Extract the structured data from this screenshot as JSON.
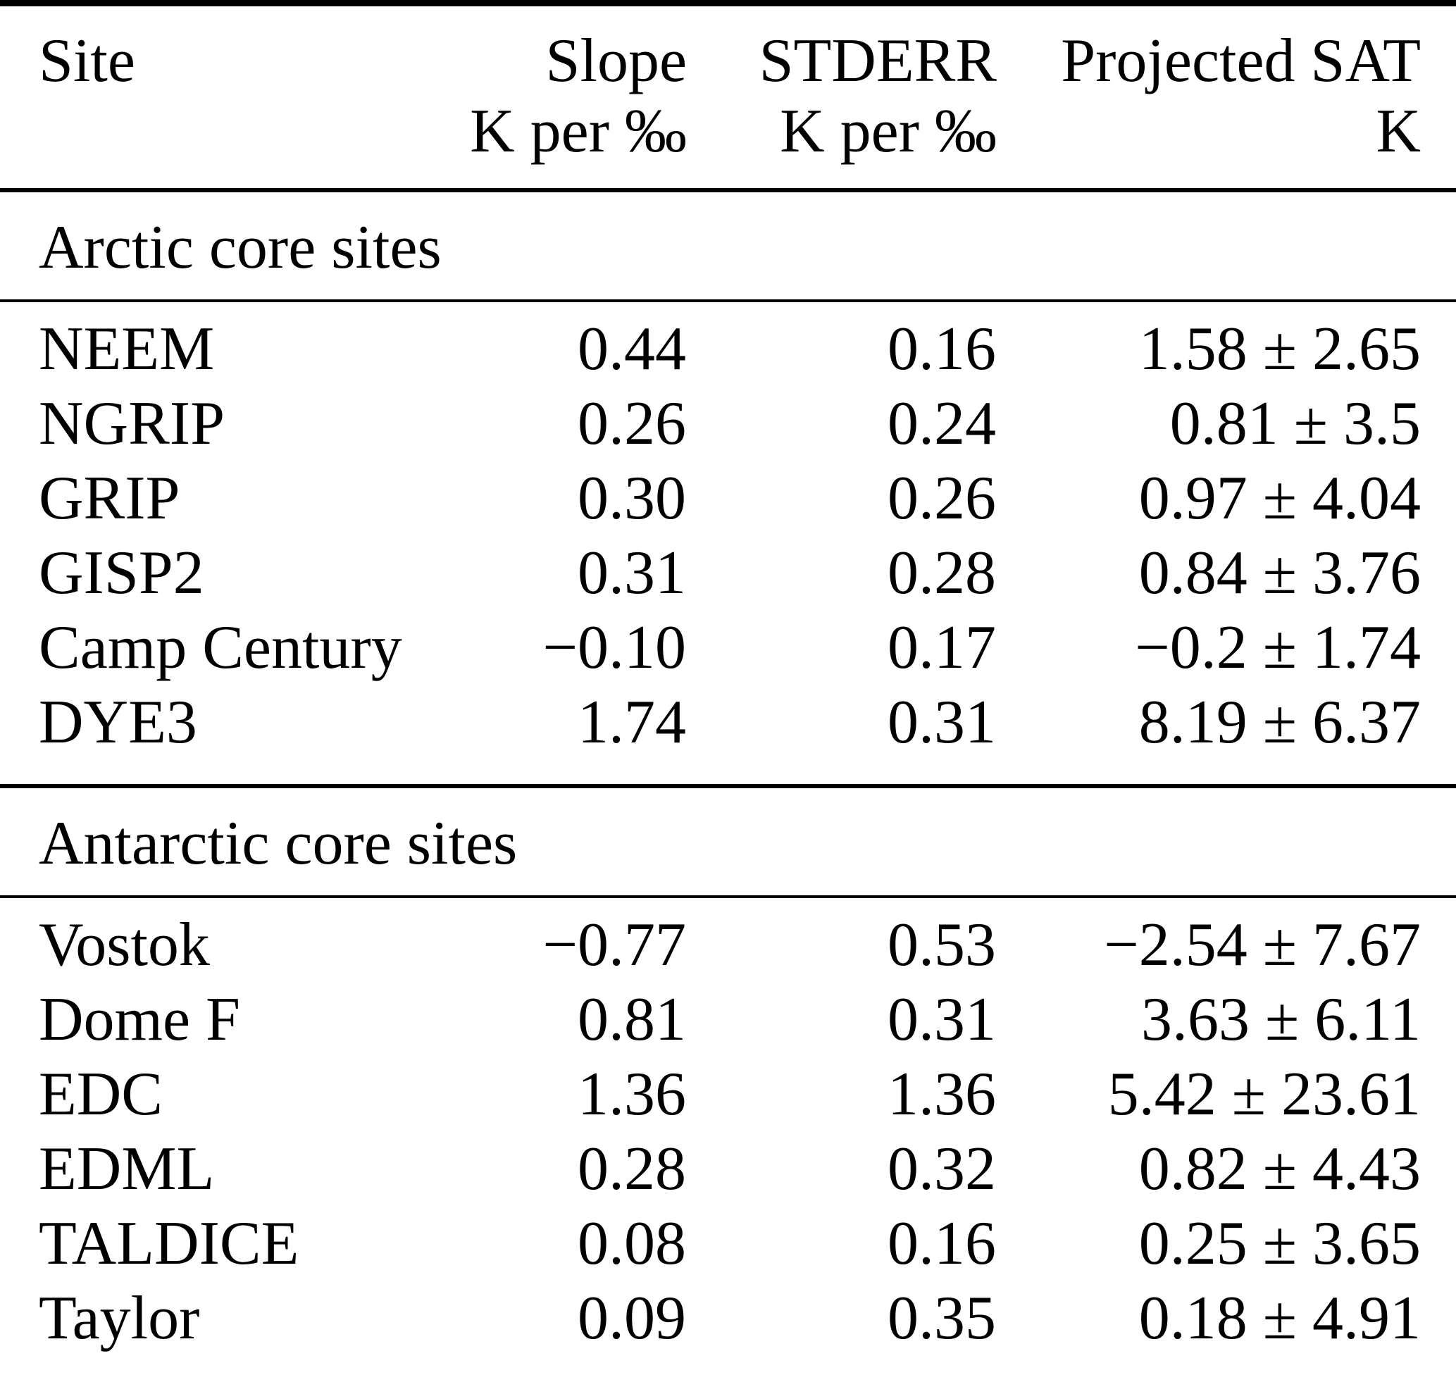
{
  "table": {
    "columns": [
      {
        "label": "Site",
        "unit": ""
      },
      {
        "label": "Slope",
        "unit": "K per ‰"
      },
      {
        "label": "STDERR",
        "unit": "K per ‰"
      },
      {
        "label": "Projected SAT",
        "unit": "K"
      }
    ],
    "sections": [
      {
        "title": "Arctic core sites",
        "rows": [
          {
            "site": "NEEM",
            "slope": "0.44",
            "stderr": "0.16",
            "projected_sat": "1.58 ± 2.65"
          },
          {
            "site": "NGRIP",
            "slope": "0.26",
            "stderr": "0.24",
            "projected_sat": "0.81 ± 3.5"
          },
          {
            "site": "GRIP",
            "slope": "0.30",
            "stderr": "0.26",
            "projected_sat": "0.97 ± 4.04"
          },
          {
            "site": "GISP2",
            "slope": "0.31",
            "stderr": "0.28",
            "projected_sat": "0.84 ± 3.76"
          },
          {
            "site": "Camp Century",
            "slope": "−0.10",
            "stderr": "0.17",
            "projected_sat": "−0.2 ± 1.74"
          },
          {
            "site": "DYE3",
            "slope": "1.74",
            "stderr": "0.31",
            "projected_sat": "8.19 ± 6.37"
          }
        ]
      },
      {
        "title": "Antarctic core sites",
        "rows": [
          {
            "site": "Vostok",
            "slope": "−0.77",
            "stderr": "0.53",
            "projected_sat": "−2.54 ± 7.67"
          },
          {
            "site": "Dome F",
            "slope": "0.81",
            "stderr": "0.31",
            "projected_sat": "3.63 ± 6.11"
          },
          {
            "site": "EDC",
            "slope": "1.36",
            "stderr": "1.36",
            "projected_sat": "5.42 ± 23.61"
          },
          {
            "site": "EDML",
            "slope": "0.28",
            "stderr": "0.32",
            "projected_sat": "0.82 ± 4.43"
          },
          {
            "site": "TALDICE",
            "slope": "0.08",
            "stderr": "0.16",
            "projected_sat": "0.25 ± 3.65"
          },
          {
            "site": "Taylor",
            "slope": "0.09",
            "stderr": "0.35",
            "projected_sat": "0.18 ± 4.91"
          }
        ]
      }
    ]
  }
}
